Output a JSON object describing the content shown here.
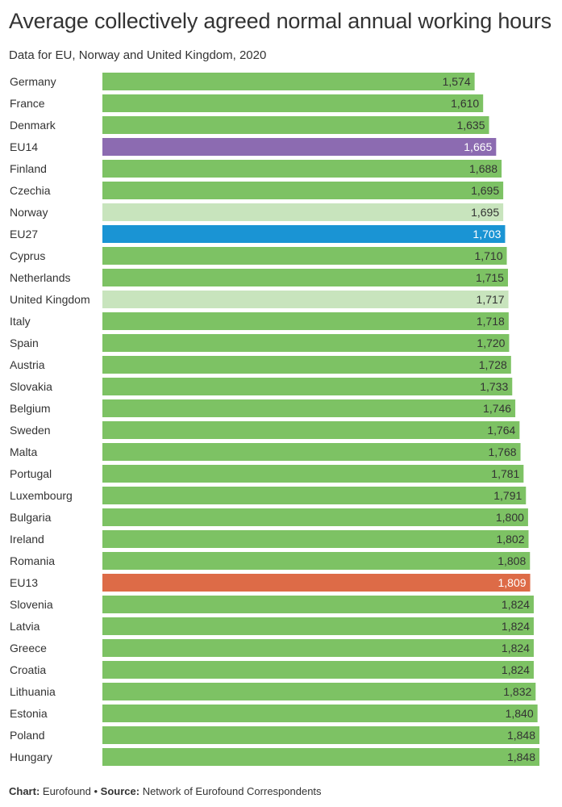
{
  "header": {
    "title": "Average collectively agreed normal annual working hours",
    "subtitle": "Data for EU, Norway and United Kingdom, 2020"
  },
  "footer": {
    "chart_label": "Chart:",
    "chart_value": " Eurofound • ",
    "source_label": "Source:",
    "source_value": " Network of Eurofound Correspondents"
  },
  "colors": {
    "default": "#7dc264",
    "eu14": "#8c6bb1",
    "eu27": "#1a94d4",
    "eu13": "#dd6b47",
    "non_eu": "#c8e4bd",
    "label_dark": "#333333",
    "label_light": "#ffffff"
  },
  "chart_data": {
    "type": "bar",
    "orientation": "horizontal",
    "xlim": [
      0,
      1848
    ],
    "grid": false,
    "categories": [
      "Germany",
      "France",
      "Denmark",
      "EU14",
      "Finland",
      "Czechia",
      "Norway",
      "EU27",
      "Cyprus",
      "Netherlands",
      "United Kingdom",
      "Italy",
      "Spain",
      "Austria",
      "Slovakia",
      "Belgium",
      "Sweden",
      "Malta",
      "Portugal",
      "Luxembourg",
      "Bulgaria",
      "Ireland",
      "Romania",
      "EU13",
      "Slovenia",
      "Latvia",
      "Greece",
      "Croatia",
      "Lithuania",
      "Estonia",
      "Poland",
      "Hungary"
    ],
    "values": [
      1574,
      1610,
      1635,
      1665,
      1688,
      1695,
      1695,
      1703,
      1710,
      1715,
      1717,
      1718,
      1720,
      1728,
      1733,
      1746,
      1764,
      1768,
      1781,
      1791,
      1800,
      1802,
      1808,
      1809,
      1824,
      1824,
      1824,
      1824,
      1832,
      1840,
      1848,
      1848
    ],
    "value_labels": [
      "1,574",
      "1,610",
      "1,635",
      "1,665",
      "1,688",
      "1,695",
      "1,695",
      "1,703",
      "1,710",
      "1,715",
      "1,717",
      "1,718",
      "1,720",
      "1,728",
      "1,733",
      "1,746",
      "1,764",
      "1,768",
      "1,781",
      "1,791",
      "1,800",
      "1,802",
      "1,808",
      "1,809",
      "1,824",
      "1,824",
      "1,824",
      "1,824",
      "1,832",
      "1,840",
      "1,848",
      "1,848"
    ],
    "bar_colors": [
      "default",
      "default",
      "default",
      "eu14",
      "default",
      "default",
      "non_eu",
      "eu27",
      "default",
      "default",
      "non_eu",
      "default",
      "default",
      "default",
      "default",
      "default",
      "default",
      "default",
      "default",
      "default",
      "default",
      "default",
      "default",
      "eu13",
      "default",
      "default",
      "default",
      "default",
      "default",
      "default",
      "default",
      "default"
    ]
  }
}
